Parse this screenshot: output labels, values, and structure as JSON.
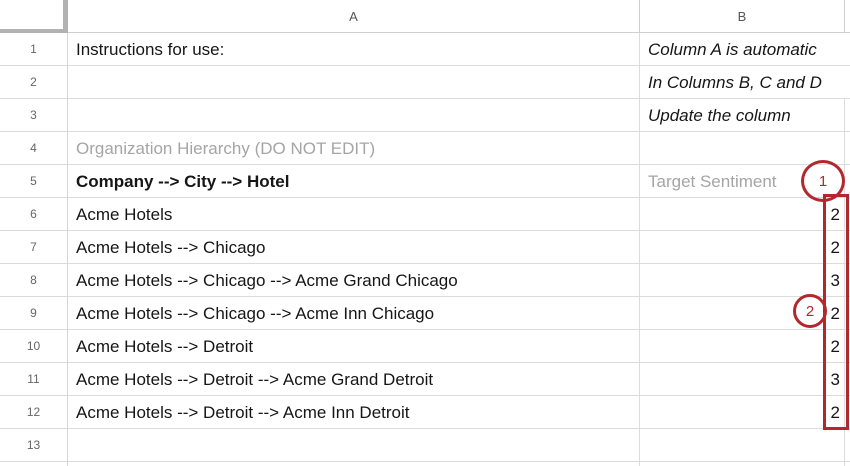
{
  "sheet": {
    "column_headers": [
      "A",
      "B"
    ],
    "rows": [
      {
        "num": "1",
        "a": "Instructions for use:",
        "b": "Column A is automatic"
      },
      {
        "num": "2",
        "a": "",
        "b": "In Columns B, C and D"
      },
      {
        "num": "3",
        "a": "",
        "b": "Update the column"
      },
      {
        "num": "4",
        "a": "Organization Hierarchy (DO NOT EDIT)",
        "b": ""
      },
      {
        "num": "5",
        "a": "Company --> City --> Hotel",
        "b": "Target Sentiment"
      },
      {
        "num": "6",
        "a": "Acme Hotels",
        "b": "2"
      },
      {
        "num": "7",
        "a": "Acme Hotels --> Chicago",
        "b": "2"
      },
      {
        "num": "8",
        "a": "Acme Hotels --> Chicago --> Acme Grand Chicago",
        "b": "3"
      },
      {
        "num": "9",
        "a": "Acme Hotels --> Chicago --> Acme Inn Chicago",
        "b": "2"
      },
      {
        "num": "10",
        "a": "Acme Hotels --> Detroit",
        "b": "2"
      },
      {
        "num": "11",
        "a": "Acme Hotels --> Detroit --> Acme Grand Detroit",
        "b": "3"
      },
      {
        "num": "12",
        "a": "Acme Hotels --> Detroit --> Acme Inn Detroit",
        "b": "2"
      },
      {
        "num": "13",
        "a": "",
        "b": ""
      }
    ]
  },
  "annotations": {
    "callout_1_label": "1",
    "callout_2_label": "2",
    "highlight_color": "#b4272c"
  }
}
